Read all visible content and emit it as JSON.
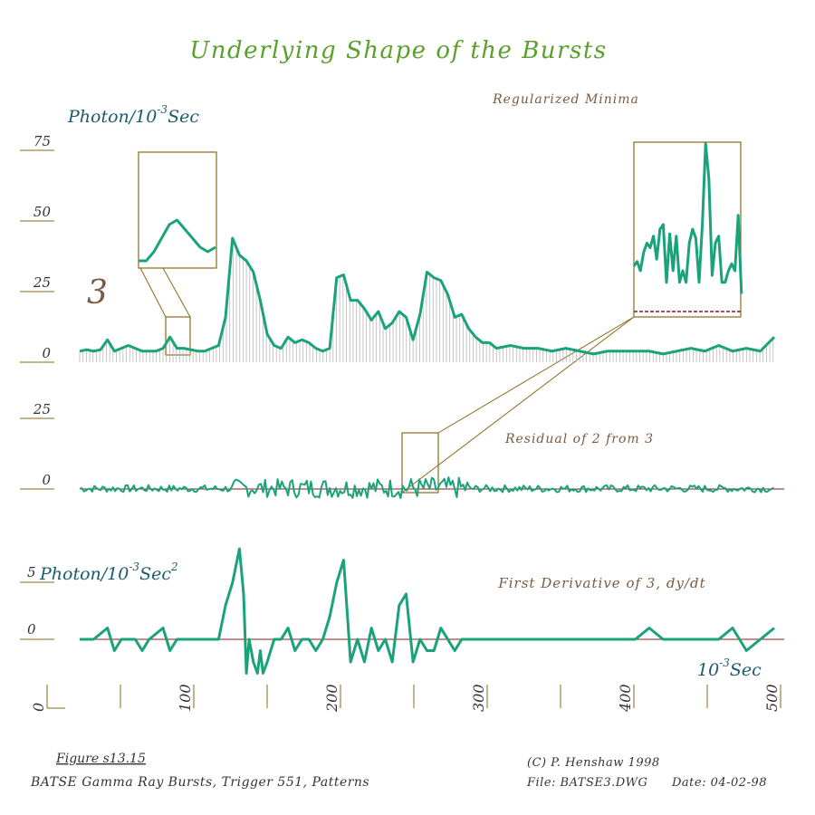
{
  "title": "Underlying Shape of the Bursts",
  "colors": {
    "title": "#5aa02c",
    "curve": "#1aa37a",
    "axis": "#8a6a1a",
    "label_blue": "#1c5a6e",
    "label_brown": "#7a5a40",
    "zero_line": "#8b1a1a",
    "hatch": "#b8b8b8"
  },
  "chart_data": [
    {
      "type": "line",
      "name": "top-panel",
      "annotation": "Regularized Minima",
      "ylabel_prefix": "Photon/10",
      "ylabel_exp": "-3",
      "ylabel_suffix": "Sec",
      "curve_label": "3",
      "yticks": [
        0,
        25,
        50,
        75
      ],
      "ylim": [
        0,
        75
      ],
      "xlim": [
        0,
        500
      ],
      "x": [
        0,
        5,
        10,
        15,
        20,
        25,
        30,
        35,
        40,
        45,
        50,
        55,
        60,
        65,
        70,
        75,
        80,
        85,
        90,
        95,
        100,
        105,
        110,
        115,
        120,
        125,
        130,
        135,
        140,
        145,
        150,
        155,
        160,
        165,
        170,
        175,
        180,
        185,
        190,
        195,
        200,
        205,
        210,
        215,
        220,
        225,
        230,
        235,
        240,
        245,
        250,
        255,
        260,
        265,
        270,
        275,
        280,
        285,
        290,
        295,
        300,
        310,
        320,
        330,
        340,
        350,
        360,
        370,
        380,
        390,
        400,
        410,
        420,
        430,
        440,
        450,
        460,
        470,
        480,
        490,
        500
      ],
      "y": [
        2,
        2.5,
        2,
        2.5,
        6,
        2,
        3,
        4,
        3,
        2,
        2,
        2,
        3,
        7,
        3,
        3,
        2.5,
        2,
        2,
        3,
        4,
        14,
        42,
        36,
        34,
        30,
        20,
        8,
        4,
        3,
        7,
        5,
        6,
        5,
        3,
        2,
        3,
        28,
        29,
        20,
        20,
        17,
        13,
        16,
        10,
        12,
        16,
        14,
        6,
        15,
        30,
        28,
        27,
        22,
        14,
        15,
        10,
        7,
        5,
        5,
        3,
        4,
        3,
        3,
        2,
        3,
        2,
        1,
        2,
        2,
        2,
        2,
        1,
        2,
        3,
        2,
        4,
        2,
        3,
        2,
        7
      ],
      "inset_left": {
        "x": [
          0,
          1,
          2,
          3,
          4,
          5,
          6,
          7,
          8,
          9,
          10
        ],
        "y": [
          1,
          1,
          3,
          6,
          9,
          10,
          8,
          6,
          4,
          3,
          4
        ]
      },
      "inset_right": {
        "x": [
          0,
          1,
          2,
          3,
          4,
          5,
          6,
          7,
          8,
          9,
          10,
          11,
          12,
          13,
          14,
          15,
          16,
          17,
          18,
          19,
          20,
          21,
          22,
          23,
          24,
          25,
          26,
          27,
          28,
          29,
          30,
          31,
          32,
          33,
          34,
          35,
          36,
          37,
          38,
          39,
          40
        ],
        "y": [
          22,
          24,
          20,
          28,
          32,
          30,
          35,
          25,
          38,
          40,
          15,
          36,
          20,
          35,
          15,
          20,
          15,
          32,
          38,
          34,
          15,
          40,
          75,
          60,
          18,
          32,
          35,
          15,
          15,
          20,
          23,
          20,
          44,
          10,
          0,
          0,
          0,
          0,
          0,
          0,
          0
        ],
        "baseline": 15
      }
    },
    {
      "type": "line",
      "name": "middle-panel",
      "annotation": "Residual of 2 from 3",
      "yticks": [
        0,
        25
      ],
      "ylim": [
        0,
        25
      ],
      "xlim": [
        0,
        500
      ]
    },
    {
      "type": "line",
      "name": "bottom-panel",
      "annotation": "First Derivative of 3, dy/dt",
      "ylabel_prefix": "Photon/10",
      "ylabel_exp": "-3",
      "ylabel_suffix": "Sec",
      "ylabel_exp2": "2",
      "yticks": [
        0,
        5
      ],
      "ylim": [
        -4,
        8
      ],
      "xlim": [
        0,
        500
      ],
      "x": [
        0,
        10,
        20,
        25,
        30,
        35,
        40,
        45,
        50,
        60,
        65,
        70,
        75,
        80,
        90,
        100,
        105,
        110,
        115,
        118,
        120,
        122,
        125,
        128,
        130,
        132,
        135,
        140,
        145,
        150,
        155,
        160,
        165,
        170,
        175,
        180,
        185,
        190,
        195,
        200,
        205,
        210,
        215,
        220,
        225,
        230,
        235,
        240,
        245,
        250,
        255,
        260,
        265,
        270,
        275,
        280,
        290,
        300,
        320,
        340,
        360,
        380,
        400,
        410,
        420,
        440,
        460,
        470,
        480,
        490,
        500
      ],
      "y": [
        0,
        0,
        1,
        -1,
        0,
        0,
        0,
        -1,
        0,
        1,
        -1,
        0,
        0,
        0,
        0,
        0,
        3,
        5,
        8,
        4,
        -3,
        0,
        -2,
        -3,
        -1,
        -3,
        -2,
        0,
        0,
        1,
        -1,
        0,
        0,
        -1,
        0,
        2,
        5,
        7,
        -2,
        0,
        -2,
        1,
        -1,
        0,
        -2,
        3,
        4,
        -2,
        0,
        -1,
        -1,
        1,
        0,
        -1,
        0,
        0,
        0,
        0,
        0,
        0,
        0,
        0,
        0,
        1,
        0,
        0,
        0,
        1,
        -1,
        0,
        1
      ]
    }
  ],
  "x_axis": {
    "ticks": [
      "0",
      "100",
      "200",
      "300",
      "400",
      "500"
    ],
    "unit_prefix": "10",
    "unit_exp": "-3",
    "unit_suffix": "Sec"
  },
  "footer": {
    "figure": "Figure s13.15",
    "caption": "BATSE Gamma Ray Bursts, Trigger 551, Patterns",
    "copyright": "(C) P. Henshaw 1998",
    "file": "File: BATSE3.DWG",
    "date": "Date: 04-02-98"
  }
}
